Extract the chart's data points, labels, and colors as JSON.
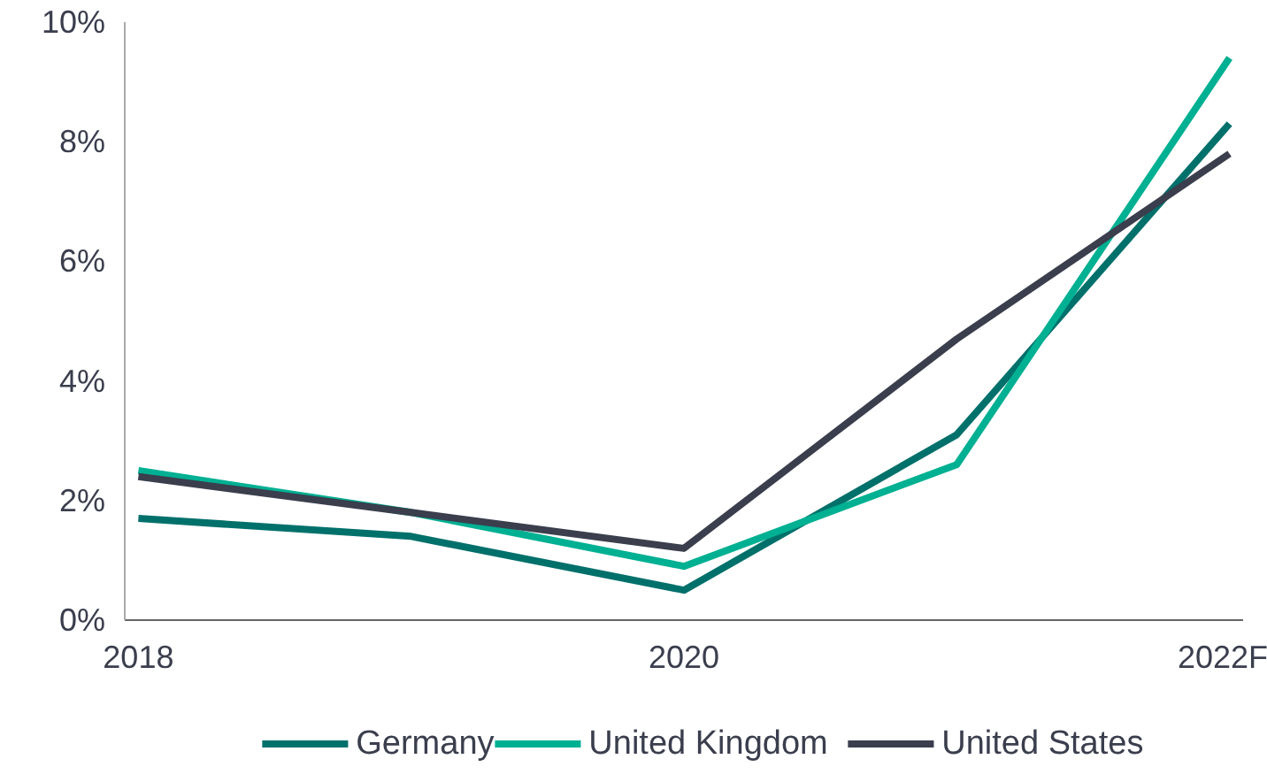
{
  "chart_data": {
    "type": "line",
    "categories": [
      "2018",
      null,
      "2020",
      null,
      "2022F"
    ],
    "series": [
      {
        "name": "Germany",
        "color": "#00706b",
        "values": [
          1.7,
          1.4,
          0.5,
          3.1,
          8.3
        ]
      },
      {
        "name": "United Kingdom",
        "color": "#00b092",
        "values": [
          2.5,
          1.8,
          0.9,
          2.6,
          9.4
        ]
      },
      {
        "name": "United States",
        "color": "#3a3e4d",
        "values": [
          2.4,
          1.8,
          1.2,
          4.7,
          7.8
        ]
      }
    ],
    "ylim": [
      0,
      10
    ],
    "yticks": [
      {
        "value": 0,
        "label": "0%"
      },
      {
        "value": 2,
        "label": "2%"
      },
      {
        "value": 4,
        "label": "4%"
      },
      {
        "value": 6,
        "label": "6%"
      },
      {
        "value": 8,
        "label": "8%"
      },
      {
        "value": 10,
        "label": "10%"
      }
    ],
    "grid": false,
    "legend": "bottom",
    "marker": "none",
    "line_style": "solid"
  }
}
